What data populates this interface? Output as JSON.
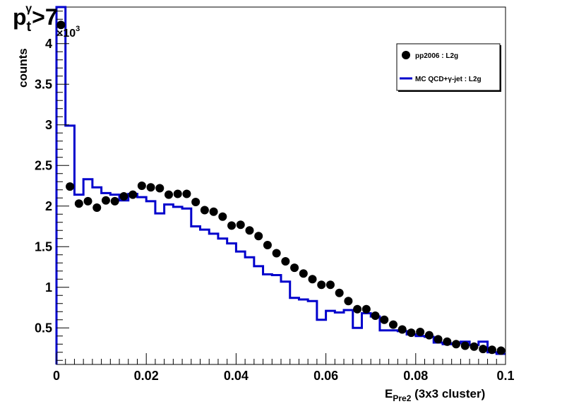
{
  "chart_data": {
    "type": "line",
    "title": {
      "main": "p",
      "sub": "t",
      "sup": "γ",
      "suffix": ">7"
    },
    "ylabel": "counts",
    "xlabel": {
      "main": "E",
      "sub": "Pre2",
      "suffix": " (3x3 cluster)"
    },
    "y_multiplier": {
      "base": "×10",
      "exp": "3"
    },
    "xlim": [
      0,
      0.1
    ],
    "ylim": [
      0.05,
      4.45
    ],
    "x_ticks": [
      "0",
      "0.02",
      "0.04",
      "0.06",
      "0.08",
      "0.1"
    ],
    "y_ticks": [
      "0.5",
      "1",
      "1.5",
      "2",
      "2.5",
      "3",
      "3.5",
      "4"
    ],
    "legend_position": "top-right",
    "colors": {
      "data": "#000000",
      "mc": "#0000cc"
    },
    "series": [
      {
        "name": "pp2006 : L2g",
        "style": "markers",
        "x": [
          0.001,
          0.003,
          0.005,
          0.007,
          0.009,
          0.011,
          0.013,
          0.015,
          0.017,
          0.019,
          0.021,
          0.023,
          0.025,
          0.027,
          0.029,
          0.031,
          0.033,
          0.035,
          0.037,
          0.039,
          0.041,
          0.043,
          0.045,
          0.047,
          0.049,
          0.051,
          0.053,
          0.055,
          0.057,
          0.059,
          0.061,
          0.063,
          0.065,
          0.067,
          0.069,
          0.071,
          0.073,
          0.075,
          0.077,
          0.079,
          0.081,
          0.083,
          0.085,
          0.087,
          0.089,
          0.091,
          0.093,
          0.095,
          0.097,
          0.099
        ],
        "values": [
          4.23,
          2.24,
          2.03,
          2.06,
          1.98,
          2.07,
          2.06,
          2.12,
          2.14,
          2.25,
          2.23,
          2.22,
          2.14,
          2.15,
          2.15,
          2.05,
          1.95,
          1.93,
          1.87,
          1.76,
          1.77,
          1.7,
          1.63,
          1.52,
          1.42,
          1.32,
          1.24,
          1.17,
          1.1,
          1.03,
          1.03,
          0.93,
          0.83,
          0.73,
          0.73,
          0.65,
          0.6,
          0.54,
          0.48,
          0.44,
          0.45,
          0.41,
          0.36,
          0.33,
          0.3,
          0.28,
          0.27,
          0.24,
          0.23,
          0.22
        ]
      },
      {
        "name": "MC QCD+γ-jet : L2g",
        "style": "step",
        "bin_edges": [
          0,
          0.002,
          0.004,
          0.006,
          0.008,
          0.01,
          0.012,
          0.014,
          0.016,
          0.018,
          0.02,
          0.022,
          0.024,
          0.026,
          0.028,
          0.03,
          0.032,
          0.034,
          0.036,
          0.038,
          0.04,
          0.042,
          0.044,
          0.046,
          0.048,
          0.05,
          0.052,
          0.054,
          0.056,
          0.058,
          0.06,
          0.062,
          0.064,
          0.066,
          0.068,
          0.07,
          0.072,
          0.074,
          0.076,
          0.078,
          0.08,
          0.082,
          0.084,
          0.086,
          0.088,
          0.09,
          0.092,
          0.094,
          0.096,
          0.098,
          0.1
        ],
        "values": [
          4.96,
          2.99,
          2.14,
          2.33,
          2.23,
          2.16,
          2.14,
          2.07,
          2.15,
          2.11,
          2.06,
          1.91,
          2.02,
          1.99,
          1.97,
          1.75,
          1.71,
          1.66,
          1.6,
          1.54,
          1.44,
          1.37,
          1.26,
          1.16,
          1.15,
          1.07,
          0.87,
          0.85,
          0.83,
          0.6,
          0.71,
          0.69,
          0.72,
          0.5,
          0.68,
          0.64,
          0.47,
          0.47,
          0.46,
          0.42,
          0.4,
          0.39,
          0.32,
          0.3,
          0.31,
          0.33,
          0.29,
          0.33,
          0.2,
          0.18
        ]
      }
    ]
  }
}
